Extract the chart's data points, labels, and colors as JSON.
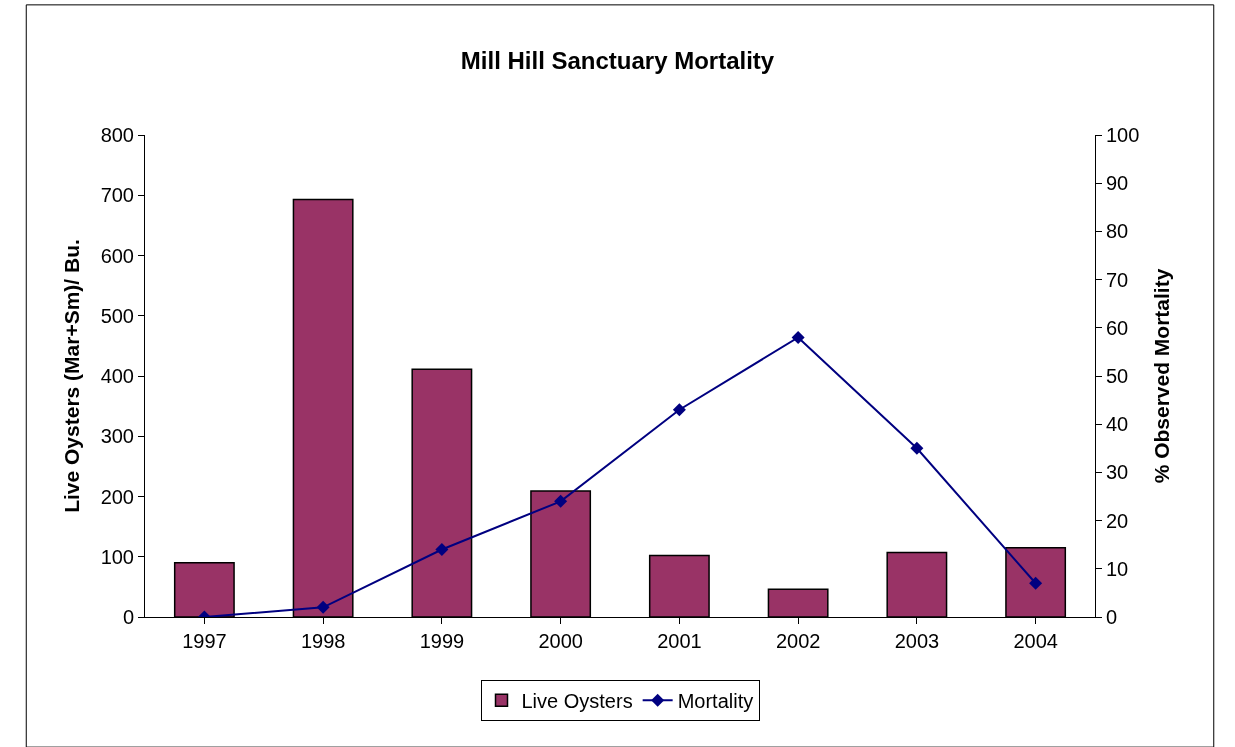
{
  "chart_data": {
    "type": "bar",
    "title": "Mill Hill Sanctuary Mortality",
    "ylabel": "Live Oysters (Mar+Sm)/ Bu.",
    "y2label": "% Observed Mortality",
    "categories": [
      "1997",
      "1998",
      "1999",
      "2000",
      "2001",
      "2002",
      "2003",
      "2004"
    ],
    "series": [
      {
        "name": "Live Oysters",
        "color": "#993366",
        "values": [
          90,
          693,
          411,
          209,
          102,
          46,
          107,
          115
        ]
      },
      {
        "name": "Mortality",
        "type": "line",
        "axis": "y2",
        "color": "#000080",
        "marker": "diamond",
        "values": [
          0,
          2,
          14,
          24,
          43,
          58,
          35,
          7
        ]
      }
    ],
    "ylim": [
      0,
      800
    ],
    "yticks": [
      0,
      100,
      200,
      300,
      400,
      500,
      600,
      700,
      800
    ],
    "y2lim": [
      0,
      100
    ],
    "y2ticks": [
      0,
      10,
      20,
      30,
      40,
      50,
      60,
      70,
      80,
      90,
      100
    ],
    "legend": "bottom"
  }
}
